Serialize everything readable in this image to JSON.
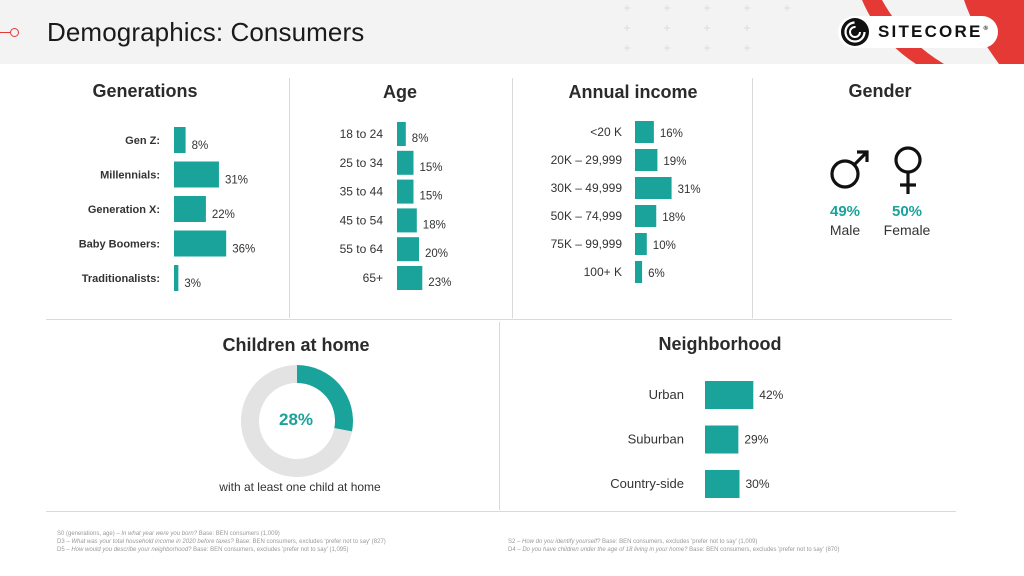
{
  "title": "Demographics: Consumers",
  "logo": {
    "text": "SITECORE",
    "tm": "®"
  },
  "colors": {
    "bar": "#1aa39a",
    "accent": "#e53935",
    "donut_bg": "#e3e3e3"
  },
  "sections": {
    "generations": "Generations",
    "age": "Age",
    "income": "Annual income",
    "gender": "Gender",
    "children": "Children at home",
    "neighborhood": "Neighborhood"
  },
  "gender": {
    "male": {
      "pct": "49%",
      "label": "Male",
      "icon": "male-symbol-icon"
    },
    "female": {
      "pct": "50%",
      "label": "Female",
      "icon": "female-symbol-icon"
    }
  },
  "children": {
    "pct": "28%",
    "subtitle": "with at least one child at home"
  },
  "footnotes": {
    "left": [
      {
        "pre": "S0 (generations, age) – ",
        "q": "In what year were you born?",
        "post": " Base: BEN consumers (1,009)"
      },
      {
        "pre": "D3 – ",
        "q": "What was your total household income in 2020 before taxes?",
        "post": " Base: BEN consumers, excludes 'prefer not to say' (827)"
      },
      {
        "pre": "D5 – ",
        "q": "How would you describe your neighborhood?",
        "post": " Base: BEN consumers, excludes 'prefer not to say' (1,095)"
      }
    ],
    "right": [
      {
        "pre": "S2 – ",
        "q": "How do you identify yourself?",
        "post": " Base: BEN consumers, excludes 'prefer not to say' (1,009)"
      },
      {
        "pre": "D4 – ",
        "q": "Do you have children under the age of 18 living in your home?",
        "post": " Base: BEN consumers, excludes 'prefer not to say' (870)"
      }
    ]
  },
  "chart_data": [
    {
      "id": "generations",
      "type": "bar",
      "orientation": "horizontal",
      "title": "Generations",
      "categories": [
        "Gen Z:",
        "Millennials:",
        "Generation X:",
        "Baby Boomers:",
        "Traditionalists:"
      ],
      "values": [
        8,
        31,
        22,
        36,
        3
      ],
      "value_labels": [
        "8%",
        "31%",
        "22%",
        "36%",
        "3%"
      ],
      "unit": "%"
    },
    {
      "id": "age",
      "type": "bar",
      "orientation": "horizontal",
      "title": "Age",
      "categories": [
        "18 to 24",
        "25 to 34",
        "35 to 44",
        "45 to 54",
        "55 to 64",
        "65+"
      ],
      "values": [
        8,
        15,
        15,
        18,
        20,
        23
      ],
      "value_labels": [
        "8%",
        "15%",
        "15%",
        "18%",
        "20%",
        "23%"
      ],
      "unit": "%"
    },
    {
      "id": "income",
      "type": "bar",
      "orientation": "horizontal",
      "title": "Annual income",
      "categories": [
        "<20 K",
        "20K – 29,999",
        "30K – 49,999",
        "50K – 74,999",
        "75K – 99,999",
        "100+ K"
      ],
      "values": [
        16,
        19,
        31,
        18,
        10,
        6
      ],
      "value_labels": [
        "16%",
        "19%",
        "31%",
        "18%",
        "10%",
        "6%"
      ],
      "unit": "%"
    },
    {
      "id": "children",
      "type": "pie",
      "title": "Children at home",
      "values": [
        28,
        72
      ],
      "value_labels": [
        "28%"
      ]
    },
    {
      "id": "neighborhood",
      "type": "bar",
      "orientation": "horizontal",
      "title": "Neighborhood",
      "categories": [
        "Urban",
        "Suburban",
        "Country-side"
      ],
      "values": [
        42,
        29,
        30
      ],
      "value_labels": [
        "42%",
        "29%",
        "30%"
      ],
      "unit": "%"
    }
  ]
}
